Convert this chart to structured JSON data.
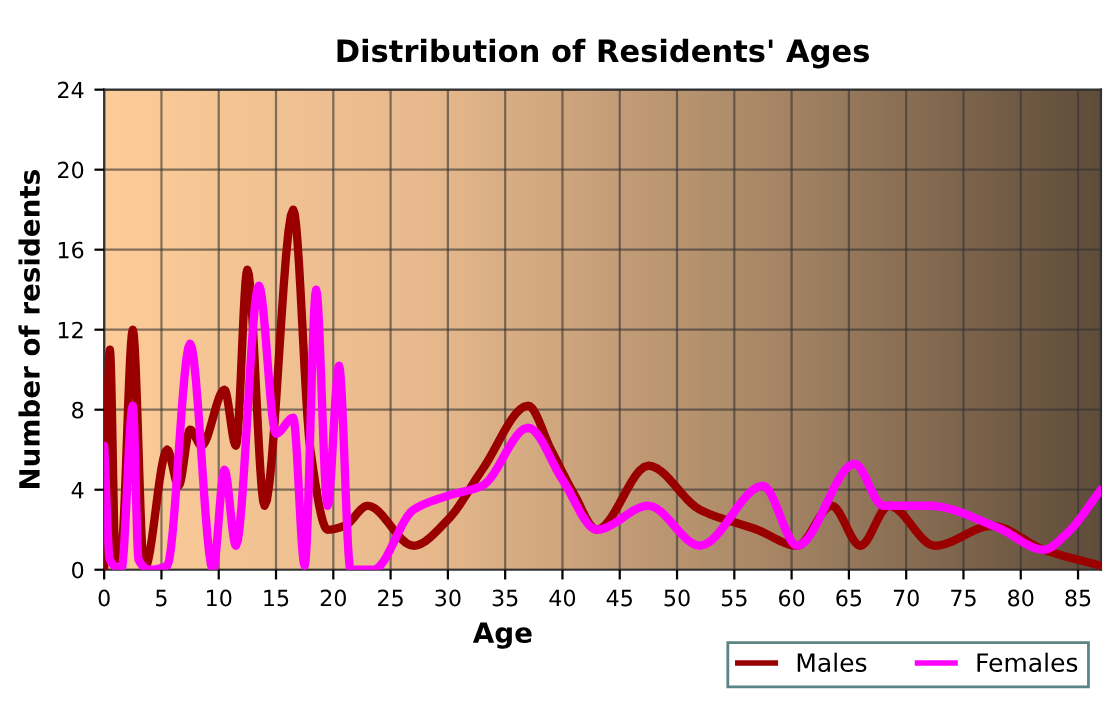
{
  "chart_data": {
    "type": "line",
    "title": "Distribution of Residents' Ages",
    "xlabel": "Age",
    "ylabel": "Number of residents",
    "xlim": [
      0,
      87
    ],
    "xticks": [
      0,
      5,
      10,
      15,
      20,
      25,
      30,
      35,
      40,
      45,
      50,
      55,
      60,
      65,
      70,
      75,
      80,
      85
    ],
    "ylim": [
      0,
      24
    ],
    "yticks": [
      0,
      4,
      8,
      12,
      16,
      20,
      24
    ],
    "grid": true,
    "legend": "bottom right",
    "marker": "none",
    "line_style": "solid",
    "series": [
      {
        "name": "Males",
        "color": "#9a0000",
        "x": [
          0,
          0.5,
          1,
          1.5,
          2.5,
          3.5,
          5.5,
          6.5,
          7.5,
          8.5,
          10.5,
          11.5,
          12.5,
          14,
          16.5,
          18,
          19.5,
          21,
          23,
          27,
          30,
          33,
          37,
          39,
          41,
          43,
          47.5,
          52,
          57,
          60.5,
          63.5,
          66,
          68.5,
          72.5,
          77.5,
          82,
          87
        ],
        "values": [
          0,
          11,
          0.5,
          1,
          12,
          0,
          6,
          4.2,
          7,
          6.2,
          9,
          6.2,
          15,
          3.2,
          18,
          6,
          2,
          2.2,
          3.2,
          1.2,
          2.5,
          5,
          8.2,
          6,
          3.8,
          2,
          5.2,
          3,
          2,
          1.2,
          3.2,
          1.2,
          3.2,
          1.2,
          2.2,
          1,
          0.2
        ]
      },
      {
        "name": "Females",
        "color": "#ff00ff",
        "x": [
          0,
          0.5,
          1.5,
          2.5,
          3,
          4,
          5.5,
          7.5,
          9.5,
          10.5,
          11.5,
          13.5,
          15,
          16.5,
          17.5,
          18.5,
          19.5,
          20.5,
          21.5,
          23.5,
          27,
          30,
          33,
          37,
          40,
          43,
          47.5,
          52,
          57.5,
          60.5,
          65.5,
          68,
          72,
          78,
          82,
          84,
          87
        ],
        "values": [
          6.2,
          0.5,
          0,
          8.2,
          0.5,
          0,
          0.2,
          11.3,
          0,
          5,
          1.2,
          14.2,
          6.8,
          7.6,
          0.2,
          14,
          3.2,
          10.2,
          0,
          0,
          3,
          3.7,
          4.2,
          7.1,
          4.5,
          2,
          3.2,
          1.2,
          4.2,
          1.2,
          5.3,
          3.2,
          3.2,
          2.1,
          1,
          1.8,
          4
        ]
      }
    ]
  }
}
